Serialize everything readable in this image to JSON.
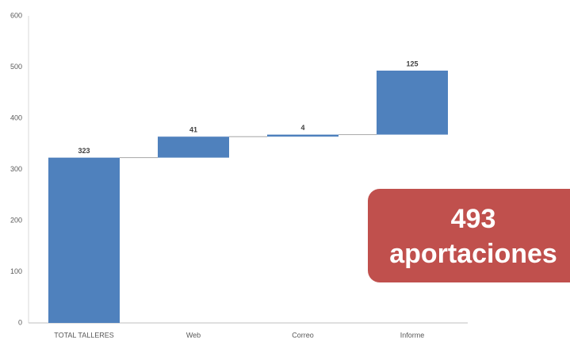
{
  "chart_data": {
    "type": "waterfall",
    "categories": [
      "TOTAL TALLERES",
      "Web",
      "Correo",
      "Informe"
    ],
    "values": [
      323,
      41,
      4,
      125
    ],
    "color": "#4f81bd",
    "ylim": [
      0,
      600
    ],
    "yticks": [
      0,
      100,
      200,
      300,
      400,
      500,
      600
    ],
    "annotation": [
      "493",
      "aportaciones"
    ],
    "annotation_color": "#c0504d"
  }
}
